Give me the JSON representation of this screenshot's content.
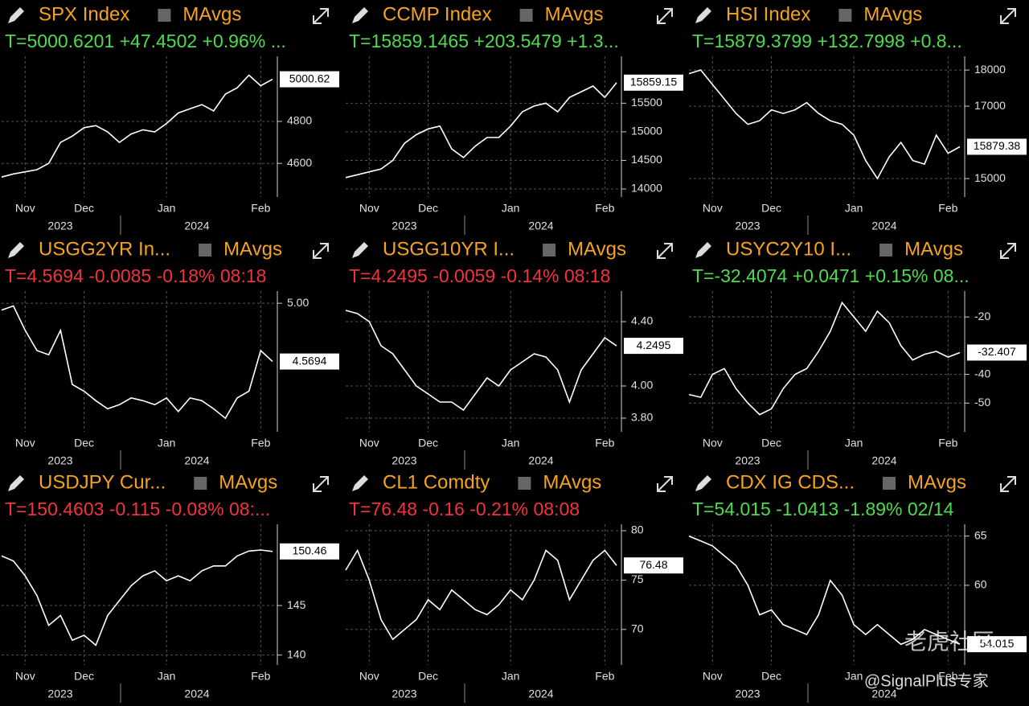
{
  "chart_data": [
    {
      "type": "line",
      "title": "SPX Index",
      "mavgs": "MAvgs",
      "quote": "T=5000.6201 +47.4502 +0.96% ...",
      "quote_color": "#4ddc4d",
      "color": "#ffffff",
      "categories": [
        null,
        null,
        "Nov",
        null,
        null,
        null,
        null,
        "Dec",
        null,
        null,
        null,
        null,
        null,
        null,
        "Jan",
        null,
        null,
        null,
        null,
        null,
        null,
        null,
        "Feb",
        null
      ],
      "values": [
        4535,
        4550,
        4560,
        4570,
        4600,
        4700,
        4730,
        4770,
        4780,
        4750,
        4700,
        4740,
        4760,
        4750,
        4790,
        4840,
        4860,
        4880,
        4850,
        4930,
        4960,
        5020,
        4970,
        5000.62
      ],
      "ylim": [
        4440,
        5110
      ],
      "yticks": [
        4600,
        4800
      ],
      "last_label": "5000.62",
      "year_labels": [
        "2023",
        "2024"
      ],
      "grid": true
    },
    {
      "type": "line",
      "title": "CCMP Index",
      "mavgs": "MAvgs",
      "quote": "T=15859.1465 +203.5479 +1.3...",
      "quote_color": "#4ddc4d",
      "color": "#ffffff",
      "categories": [
        null,
        null,
        "Nov",
        null,
        null,
        null,
        null,
        "Dec",
        null,
        null,
        null,
        null,
        null,
        null,
        "Jan",
        null,
        null,
        null,
        null,
        null,
        null,
        null,
        "Feb",
        null
      ],
      "values": [
        14200,
        14250,
        14300,
        14350,
        14500,
        14800,
        14950,
        15050,
        15100,
        14700,
        14550,
        14750,
        14900,
        14900,
        15100,
        15350,
        15450,
        15500,
        15350,
        15600,
        15700,
        15800,
        15600,
        15859.15
      ],
      "ylim": [
        13860,
        16320
      ],
      "yticks": [
        14000,
        14500,
        15000,
        15500
      ],
      "last_label": "15859.15",
      "year_labels": [
        "2023",
        "2024"
      ],
      "grid": true
    },
    {
      "type": "line",
      "title": "HSI Index",
      "mavgs": "MAvgs",
      "quote": "T=15879.3799 +132.7998 +0.8...",
      "quote_color": "#4ddc4d",
      "color": "#ffffff",
      "categories": [
        null,
        null,
        "Nov",
        null,
        null,
        null,
        null,
        "Dec",
        null,
        null,
        null,
        null,
        null,
        null,
        "Jan",
        null,
        null,
        null,
        null,
        null,
        null,
        null,
        "Feb",
        null
      ],
      "values": [
        17900,
        18000,
        17600,
        17200,
        16800,
        16500,
        16600,
        16900,
        16800,
        16900,
        17100,
        16800,
        16600,
        16500,
        16200,
        15500,
        15000,
        15600,
        16000,
        15500,
        15400,
        16200,
        15700,
        15879.38
      ],
      "ylim": [
        14490,
        18380
      ],
      "yticks": [
        15000,
        17000,
        18000
      ],
      "last_label": "15879.38",
      "year_labels": [
        "2023",
        "2024"
      ],
      "grid": true
    },
    {
      "type": "line",
      "title": "USGG2YR In...",
      "mavgs": "MAvgs",
      "quote": "T=4.5694 -0.0085 -0.18% 08:18",
      "quote_color": "#f2323c",
      "color": "#ffffff",
      "categories": [
        null,
        null,
        "Nov",
        null,
        null,
        null,
        null,
        "Dec",
        null,
        null,
        null,
        null,
        null,
        null,
        "Jan",
        null,
        null,
        null,
        null,
        null,
        null,
        null,
        "Feb",
        null
      ],
      "values": [
        4.95,
        4.98,
        4.8,
        4.65,
        4.62,
        4.8,
        4.4,
        4.35,
        4.28,
        4.22,
        4.25,
        4.3,
        4.28,
        4.25,
        4.3,
        4.2,
        4.3,
        4.28,
        4.22,
        4.15,
        4.3,
        4.35,
        4.65,
        4.5694
      ],
      "ylim": [
        4.05,
        5.09
      ],
      "yticks": [
        {
          "value": 5,
          "label": "5.00"
        }
      ],
      "last_label": "4.5694",
      "year_labels": [
        "2023",
        "2024"
      ],
      "grid": true
    },
    {
      "type": "line",
      "title": "USGG10YR I...",
      "mavgs": "MAvgs",
      "quote": "T=4.2495 -0.0059 -0.14% 08:18",
      "quote_color": "#f2323c",
      "color": "#ffffff",
      "categories": [
        null,
        null,
        "Nov",
        null,
        null,
        null,
        null,
        "Dec",
        null,
        null,
        null,
        null,
        null,
        null,
        "Jan",
        null,
        null,
        null,
        null,
        null,
        null,
        null,
        "Feb",
        null
      ],
      "values": [
        4.47,
        4.45,
        4.4,
        4.25,
        4.2,
        4.1,
        4.0,
        3.95,
        3.9,
        3.9,
        3.85,
        3.95,
        4.05,
        4.0,
        4.1,
        4.15,
        4.2,
        4.18,
        4.1,
        3.9,
        4.1,
        4.2,
        4.3,
        4.2495
      ],
      "ylim": [
        3.715,
        4.59
      ],
      "yticks": [
        {
          "value": 3.8,
          "label": "3.80"
        },
        {
          "value": 4,
          "label": "4.00"
        },
        {
          "value": 4.4,
          "label": "4.40"
        }
      ],
      "last_label": "4.2495",
      "year_labels": [
        "2023",
        "2024"
      ],
      "grid": true
    },
    {
      "type": "line",
      "title": "USYC2Y10 I...",
      "mavgs": "MAvgs",
      "quote": "T=-32.4074 +0.0471 +0.15% 08...",
      "quote_color": "#4ddc4d",
      "color": "#ffffff",
      "categories": [
        null,
        null,
        "Nov",
        null,
        null,
        null,
        null,
        "Dec",
        null,
        null,
        null,
        null,
        null,
        null,
        "Jan",
        null,
        null,
        null,
        null,
        null,
        null,
        null,
        "Feb",
        null
      ],
      "values": [
        -47,
        -48,
        -40,
        -38,
        -45,
        -50,
        -54,
        -52,
        -45,
        -40,
        -38,
        -32,
        -25,
        -15,
        -20,
        -25,
        -18,
        -22,
        -30,
        -35,
        -33,
        -32,
        -34,
        -32.407
      ],
      "ylim": [
        -60,
        -11
      ],
      "yticks": [
        -20,
        -40,
        -50
      ],
      "last_label": "-32.407",
      "year_labels": [
        "2023",
        "2024"
      ],
      "grid": true
    },
    {
      "type": "line",
      "title": "USDJPY Cur...",
      "mavgs": "MAvgs",
      "quote": "T=150.4603 -0.115 -0.08% 08:...",
      "quote_color": "#f2323c",
      "color": "#ffffff",
      "categories": [
        null,
        null,
        "Nov",
        null,
        null,
        null,
        null,
        "Dec",
        null,
        null,
        null,
        null,
        null,
        null,
        "Jan",
        null,
        null,
        null,
        null,
        null,
        null,
        null,
        "Feb",
        null
      ],
      "values": [
        150,
        149.5,
        148,
        146,
        143,
        144,
        141.5,
        142,
        141,
        144,
        145.5,
        147,
        148,
        148.5,
        147.5,
        148,
        147.5,
        148.5,
        149,
        149,
        150,
        150.5,
        150.6,
        150.46
      ],
      "ylim": [
        139,
        153.2
      ],
      "yticks": [
        140,
        145
      ],
      "last_label": "150.46",
      "year_labels": [
        "2023",
        "2024"
      ],
      "grid": true
    },
    {
      "type": "line",
      "title": "CL1 Comdty",
      "mavgs": "MAvgs",
      "quote": "T=76.48 -0.16 -0.21% 08:08",
      "quote_color": "#f2323c",
      "color": "#ffffff",
      "categories": [
        null,
        null,
        "Nov",
        null,
        null,
        null,
        null,
        "Dec",
        null,
        null,
        null,
        null,
        null,
        null,
        "Jan",
        null,
        null,
        null,
        null,
        null,
        null,
        null,
        "Feb",
        null
      ],
      "values": [
        76,
        78,
        75,
        71,
        69,
        70,
        71,
        73,
        72,
        74,
        73,
        72,
        71.5,
        72.5,
        74,
        73,
        75,
        78,
        77,
        73,
        75,
        77,
        78,
        76.48
      ],
      "ylim": [
        66.4,
        80.65
      ],
      "yticks": [
        70,
        75,
        80
      ],
      "last_label": "76.48",
      "year_labels": [
        "2023",
        "2024"
      ],
      "grid": true
    },
    {
      "type": "line",
      "title": "CDX IG CDS...",
      "mavgs": "MAvgs",
      "quote": "T=54.015 -1.0413 -1.89% 02/14",
      "quote_color": "#4ddc4d",
      "color": "#ffffff",
      "categories": [
        null,
        null,
        "Nov",
        null,
        null,
        null,
        null,
        "Dec",
        null,
        null,
        null,
        null,
        null,
        null,
        "Jan",
        null,
        null,
        null,
        null,
        null,
        null,
        null,
        "Feb",
        null
      ],
      "values": [
        65,
        64.5,
        64,
        63,
        62,
        60,
        57,
        57.5,
        56,
        55.5,
        55,
        57,
        60.5,
        59,
        56,
        55,
        56,
        55,
        54,
        54.5,
        55.5,
        55,
        54.5,
        54.015
      ],
      "ylim": [
        51.9,
        66.2
      ],
      "yticks": [
        60,
        65
      ],
      "last_label": "54.015",
      "year_labels": [
        "2023",
        "2024"
      ],
      "grid": true
    }
  ],
  "watermark": [
    "老虎社区",
    "@SignalPlus专家"
  ]
}
